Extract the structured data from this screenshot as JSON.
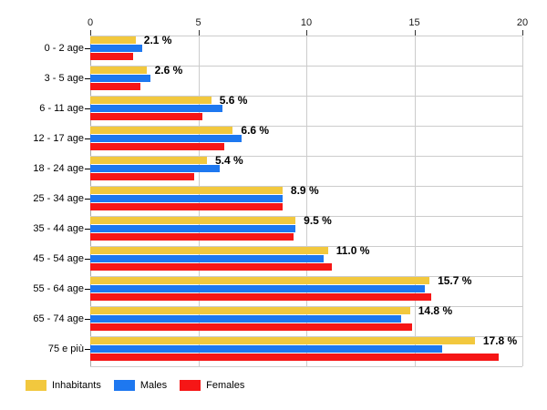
{
  "chart_data": {
    "type": "bar",
    "orientation": "horizontal",
    "title": "",
    "xlabel": "",
    "ylabel": "",
    "xlim": [
      0,
      20
    ],
    "x_ticks": [
      0,
      5,
      10,
      15,
      20
    ],
    "grid": true,
    "legend_position": "bottom",
    "categories": [
      "0 - 2 age",
      "3 - 5 age",
      "6 - 11 age",
      "12 - 17 age",
      "18 - 24 age",
      "25 - 34 age",
      "35 - 44 age",
      "45 - 54 age",
      "55 - 64 age",
      "65 - 74 age",
      "75 e più"
    ],
    "series": [
      {
        "name": "Inhabitants",
        "color": "#F2C83E",
        "values": [
          2.1,
          2.6,
          5.6,
          6.6,
          5.4,
          8.9,
          9.5,
          11.0,
          15.7,
          14.8,
          17.8
        ]
      },
      {
        "name": "Males",
        "color": "#1E78F0",
        "values": [
          2.4,
          2.8,
          6.1,
          7.0,
          6.0,
          8.9,
          9.5,
          10.8,
          15.5,
          14.4,
          16.3
        ]
      },
      {
        "name": "Females",
        "color": "#F61616",
        "values": [
          2.0,
          2.3,
          5.2,
          6.2,
          4.8,
          8.9,
          9.4,
          11.2,
          15.8,
          14.9,
          18.9
        ]
      }
    ],
    "data_labels": [
      "2.1 %",
      "2.6 %",
      "5.6 %",
      "6.6 %",
      "5.4 %",
      "8.9 %",
      "9.5 %",
      "11.0 %",
      "15.7 %",
      "14.8 %",
      "17.8 %"
    ]
  },
  "colors": {
    "background": "#ffffff",
    "grid_line": "#cccccc",
    "zero_line": "#aaaaaa",
    "tick_mark": "#333333",
    "text": "#000000"
  }
}
